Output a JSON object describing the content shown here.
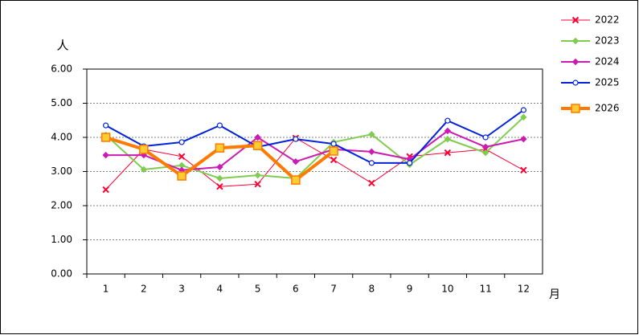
{
  "chart_data": {
    "type": "line",
    "y_unit": "人",
    "x_unit": "月",
    "categories": [
      "1",
      "2",
      "3",
      "4",
      "5",
      "6",
      "7",
      "8",
      "9",
      "10",
      "11",
      "12"
    ],
    "series": [
      {
        "name": "2022",
        "color": "#ff0033",
        "marker": "x",
        "line_width": 1,
        "values": [
          2.47,
          3.65,
          3.44,
          2.56,
          2.63,
          3.98,
          3.34,
          2.66,
          3.44,
          3.55,
          3.65,
          3.04
        ]
      },
      {
        "name": "2023",
        "color": "#80cc50",
        "marker": "diamond",
        "line_width": 2,
        "values": [
          4.07,
          3.06,
          3.18,
          2.8,
          2.89,
          2.8,
          3.86,
          4.09,
          3.2,
          3.95,
          3.55,
          4.59
        ]
      },
      {
        "name": "2024",
        "color": "#cc1ab3",
        "marker": "diamond",
        "line_width": 2,
        "values": [
          3.48,
          3.48,
          3.04,
          3.13,
          4.0,
          3.29,
          3.65,
          3.58,
          3.36,
          4.19,
          3.72,
          3.95
        ]
      },
      {
        "name": "2025",
        "color": "#0022dd",
        "marker": "circle",
        "line_width": 2,
        "values": [
          4.35,
          3.74,
          3.86,
          4.35,
          3.72,
          3.95,
          3.81,
          3.25,
          3.25,
          4.49,
          4.0,
          4.8
        ]
      },
      {
        "name": "2026",
        "color": "#ff7a00",
        "marker": "square",
        "line_width": 4,
        "values": [
          4.0,
          3.65,
          2.87,
          3.69,
          3.76,
          2.75,
          3.6,
          null,
          null,
          null,
          null,
          null
        ]
      }
    ],
    "ylim": [
      0,
      6
    ],
    "yticks": [
      {
        "value": 0,
        "label": "0.00"
      },
      {
        "value": 1,
        "label": "1.00"
      },
      {
        "value": 2,
        "label": "2.00"
      },
      {
        "value": 3,
        "label": "3.00"
      },
      {
        "value": 4,
        "label": "4.00"
      },
      {
        "value": 5,
        "label": "5.00"
      },
      {
        "value": 6,
        "label": "6.00"
      }
    ],
    "grid": true
  }
}
